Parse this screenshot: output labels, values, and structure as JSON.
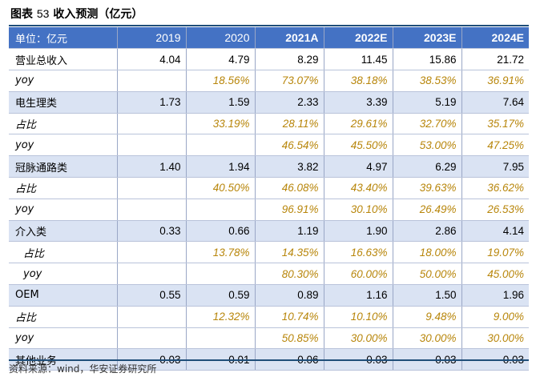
{
  "title": {
    "prefix": "图表",
    "number": "53",
    "text": "收入预测（亿元）"
  },
  "header": [
    "单位：亿元",
    "2019",
    "2020",
    "2021A",
    "2022E",
    "2023E",
    "2024E"
  ],
  "rows": [
    {
      "label": "营业总收入",
      "type": "main",
      "values": [
        "4.04",
        "4.79",
        "8.29",
        "11.45",
        "15.86",
        "21.72"
      ]
    },
    {
      "label": "yoy",
      "type": "sub",
      "values": [
        "",
        "18.56%",
        "73.07%",
        "38.18%",
        "38.53%",
        "36.91%"
      ]
    },
    {
      "label": "电生理类",
      "type": "main",
      "values": [
        "1.73",
        "1.59",
        "2.33",
        "3.39",
        "5.19",
        "7.64"
      ]
    },
    {
      "label": "占比",
      "type": "sub",
      "values": [
        "",
        "33.19%",
        "28.11%",
        "29.61%",
        "32.70%",
        "35.17%"
      ]
    },
    {
      "label": "yoy",
      "type": "sub",
      "values": [
        "",
        "",
        "46.54%",
        "45.50%",
        "53.00%",
        "47.25%"
      ]
    },
    {
      "label": "冠脉通路类",
      "type": "main",
      "values": [
        "1.40",
        "1.94",
        "3.82",
        "4.97",
        "6.29",
        "7.95"
      ]
    },
    {
      "label": "占比",
      "type": "sub",
      "values": [
        "",
        "40.50%",
        "46.08%",
        "43.40%",
        "39.63%",
        "36.62%"
      ]
    },
    {
      "label": "yoy",
      "type": "sub",
      "values": [
        "",
        "",
        "96.91%",
        "30.10%",
        "26.49%",
        "26.53%"
      ]
    },
    {
      "label": "介入类",
      "type": "main",
      "values": [
        "0.33",
        "0.66",
        "1.19",
        "1.90",
        "2.86",
        "4.14"
      ]
    },
    {
      "label": "占比",
      "type": "sub-indent",
      "values": [
        "",
        "13.78%",
        "14.35%",
        "16.63%",
        "18.00%",
        "19.07%"
      ]
    },
    {
      "label": "yoy",
      "type": "sub-indent",
      "values": [
        "",
        "",
        "80.30%",
        "60.00%",
        "50.00%",
        "45.00%"
      ]
    },
    {
      "label": "OEM",
      "type": "main",
      "values": [
        "0.55",
        "0.59",
        "0.89",
        "1.16",
        "1.50",
        "1.96"
      ]
    },
    {
      "label": "占比",
      "type": "sub",
      "values": [
        "",
        "12.32%",
        "10.74%",
        "10.10%",
        "9.48%",
        "9.00%"
      ]
    },
    {
      "label": "yoy",
      "type": "sub",
      "values": [
        "",
        "",
        "50.85%",
        "30.00%",
        "30.00%",
        "30.00%"
      ]
    },
    {
      "label": "其他业务",
      "type": "main",
      "values": [
        "0.03",
        "0.01",
        "0.06",
        "0.03",
        "0.03",
        "0.03"
      ]
    }
  ],
  "source": "资料来源：wind，华安证券研究所",
  "colors": {
    "header_bg": "#4472c4",
    "main_row_bg": "#dae3f3",
    "sub_value": "#b8860b"
  }
}
